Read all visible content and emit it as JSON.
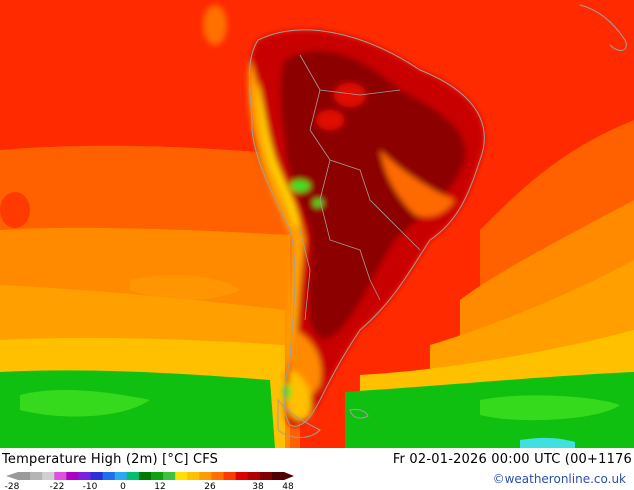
{
  "header": {
    "title": "Temperature High (2m) [°C] CFS",
    "datetime": "Fr 02-01-2026 00:00 UTC (00+1176",
    "credit": "©weatheronline.co.uk"
  },
  "legend": {
    "ticks": [
      "-28",
      "-22",
      "-10",
      "0",
      "12",
      "26",
      "38",
      "48"
    ],
    "colors": [
      "#9a9a9a",
      "#b5b5b5",
      "#d0d0d0",
      "#e050e0",
      "#b000c8",
      "#7a20e0",
      "#2830d8",
      "#1f6ef0",
      "#2aa8f0",
      "#00c070",
      "#007a00",
      "#10a010",
      "#40c040",
      "#ffe000",
      "#ffc000",
      "#ff9a00",
      "#ff7000",
      "#ff3a00",
      "#e00000",
      "#b00000",
      "#800000",
      "#500000"
    ]
  },
  "map": {
    "region": "South America",
    "palette": {
      "ocean_warm": "#ff1a00",
      "hot": "#c80000",
      "very_hot": "#8c0000",
      "warm_orange": "#ff8a00",
      "orange": "#ffa000",
      "yellow": "#ffc000",
      "green": "#10c010",
      "light_green": "#3ee020",
      "cyan": "#40e0e0",
      "coast": "#a0a0a0"
    }
  }
}
